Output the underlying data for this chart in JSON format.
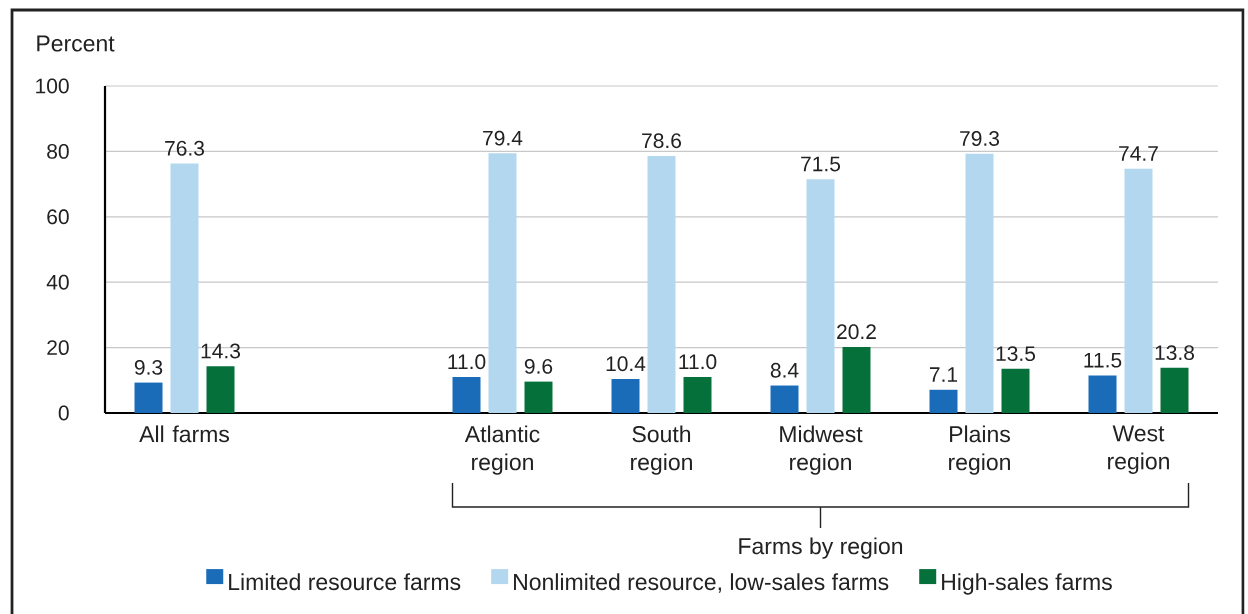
{
  "chart_data": {
    "type": "bar",
    "categories": [
      "All farms",
      null,
      "Atlantic region",
      "South region",
      "Midwest region",
      "Plains region",
      "West region"
    ],
    "series": [
      {
        "name": "Limited resource farms",
        "color": "#1b6cb8",
        "values": [
          9.3,
          null,
          11.0,
          10.4,
          8.4,
          7.1,
          11.5
        ],
        "value_labels": [
          "9.3",
          null,
          "11.0",
          "10.4",
          "8.4",
          "7.1",
          "11.5"
        ]
      },
      {
        "name": "Nonlimited resource, low-sales farms",
        "color": "#b4d7f0",
        "values": [
          76.3,
          null,
          79.4,
          78.6,
          71.5,
          79.3,
          74.7
        ],
        "value_labels": [
          "76.3",
          null,
          "79.4",
          "78.6",
          "71.5",
          "79.3",
          "74.7"
        ]
      },
      {
        "name": "High-sales farms",
        "color": "#06703a",
        "values": [
          14.3,
          null,
          9.6,
          11.0,
          20.2,
          13.5,
          13.8
        ],
        "value_labels": [
          "14.3",
          null,
          "9.6",
          "11.0",
          "20.2",
          "13.5",
          "13.8"
        ]
      }
    ],
    "ylabel": "Percent",
    "ylim": [
      0,
      100
    ],
    "yticks": [
      0,
      20,
      40,
      60,
      80,
      100
    ],
    "grid": "y",
    "legend": "bottom",
    "annotations": [
      "Farms by region"
    ]
  }
}
